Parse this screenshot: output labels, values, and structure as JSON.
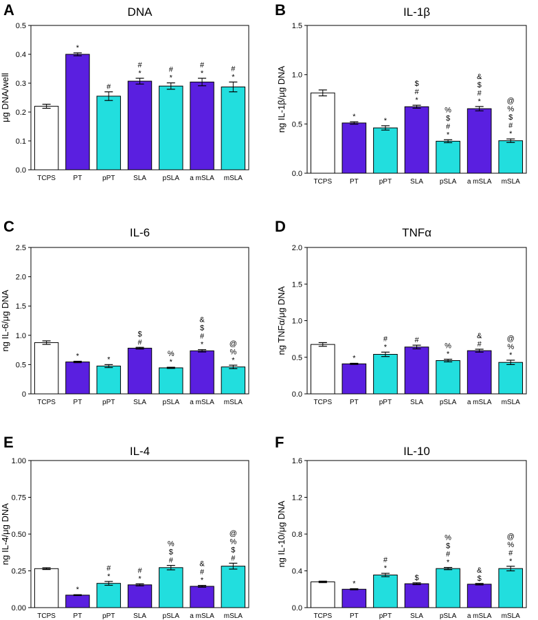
{
  "figure": {
    "colors": {
      "white": "#ffffff",
      "purple": "#5a1fe0",
      "cyan": "#22dede"
    },
    "bar_colors": [
      "white",
      "purple",
      "cyan",
      "purple",
      "cyan",
      "purple",
      "cyan"
    ]
  },
  "chart_data": [
    {
      "panel": "A",
      "title": "DNA",
      "type": "bar",
      "ylabel": "μg DNA/well",
      "categories": [
        "TCPS",
        "PT",
        "pPT",
        "SLA",
        "pSLA",
        "a mSLA",
        "mSLA"
      ],
      "values": [
        0.22,
        0.4,
        0.255,
        0.307,
        0.29,
        0.304,
        0.287
      ],
      "errors": [
        0.007,
        0.005,
        0.015,
        0.01,
        0.011,
        0.013,
        0.017
      ],
      "ylim": [
        0,
        0.5
      ],
      "yticks": [
        "0.0",
        "0.1",
        "0.2",
        "0.3",
        "0.4",
        "0.5"
      ],
      "annotations": [
        [],
        [
          "*"
        ],
        [
          "#"
        ],
        [
          "#",
          "*"
        ],
        [
          "#",
          "*"
        ],
        [
          "#",
          "*"
        ],
        [
          "#",
          "*"
        ]
      ]
    },
    {
      "panel": "B",
      "title": "IL-1β",
      "type": "bar",
      "ylabel": "ng IL-1β/μg DNA",
      "categories": [
        "TCPS",
        "PT",
        "pPT",
        "SLA",
        "pSLA",
        "a mSLA",
        "mSLA"
      ],
      "values": [
        0.815,
        0.51,
        0.46,
        0.675,
        0.325,
        0.655,
        0.33
      ],
      "errors": [
        0.03,
        0.012,
        0.022,
        0.015,
        0.015,
        0.022,
        0.018
      ],
      "ylim": [
        0,
        1.5
      ],
      "yticks": [
        "0.0",
        "0.5",
        "1.0",
        "1.5"
      ],
      "annotations": [
        [],
        [
          "*"
        ],
        [
          "*"
        ],
        [
          "$",
          "#",
          "*"
        ],
        [
          "%",
          "$",
          "#",
          "*"
        ],
        [
          "&",
          "$",
          "#",
          "*"
        ],
        [
          "@",
          "%",
          "$",
          "#",
          "*"
        ]
      ]
    },
    {
      "panel": "C",
      "title": "IL-6",
      "type": "bar",
      "ylabel": "ng IL-6/μg DNA",
      "categories": [
        "TCPS",
        "PT",
        "pPT",
        "SLA",
        "pSLA",
        "a mSLA",
        "mSLA"
      ],
      "values": [
        0.875,
        0.545,
        0.475,
        0.78,
        0.445,
        0.735,
        0.46
      ],
      "errors": [
        0.03,
        0.012,
        0.025,
        0.015,
        0.01,
        0.02,
        0.03
      ],
      "ylim": [
        0,
        2.5
      ],
      "yticks": [
        "0",
        "0.5",
        "1.0",
        "1.5",
        "2.0",
        "2.5"
      ],
      "annotations": [
        [],
        [
          "*"
        ],
        [
          "*"
        ],
        [
          "$",
          "#"
        ],
        [
          "%",
          "*"
        ],
        [
          "&",
          "$",
          "#",
          "*"
        ],
        [
          "@",
          "%",
          "*"
        ]
      ]
    },
    {
      "panel": "D",
      "title": "TNFα",
      "type": "bar",
      "ylabel": "ng TNFα/μg DNA",
      "categories": [
        "TCPS",
        "PT",
        "pPT",
        "SLA",
        "pSLA",
        "a mSLA",
        "mSLA"
      ],
      "values": [
        0.675,
        0.41,
        0.54,
        0.64,
        0.455,
        0.59,
        0.43
      ],
      "errors": [
        0.025,
        0.008,
        0.03,
        0.025,
        0.018,
        0.02,
        0.03
      ],
      "ylim": [
        0,
        2.0
      ],
      "yticks": [
        "0.0",
        "0.5",
        "1.0",
        "1.5",
        "2.0"
      ],
      "annotations": [
        [],
        [
          "*"
        ],
        [
          "#",
          "*"
        ],
        [
          "#"
        ],
        [
          "%",
          "*"
        ],
        [
          "&",
          "#"
        ],
        [
          "@",
          "%",
          "*"
        ]
      ]
    },
    {
      "panel": "E",
      "title": "IL-4",
      "type": "bar",
      "ylabel": "ng IL-4/μg DNA",
      "categories": [
        "TCPS",
        "PT",
        "pPT",
        "SLA",
        "pSLA",
        "a mSLA",
        "mSLA"
      ],
      "values": [
        0.265,
        0.085,
        0.165,
        0.155,
        0.272,
        0.145,
        0.282
      ],
      "errors": [
        0.006,
        0.003,
        0.013,
        0.007,
        0.015,
        0.006,
        0.02
      ],
      "ylim": [
        0,
        1.0
      ],
      "yticks": [
        "0.00",
        "0.25",
        "0.50",
        "0.75",
        "1.00"
      ],
      "annotations": [
        [],
        [
          "*"
        ],
        [
          "#",
          "*"
        ],
        [
          "#",
          "*"
        ],
        [
          "%",
          "$",
          "#"
        ],
        [
          "&",
          "#",
          "*"
        ],
        [
          "@",
          "%",
          "$",
          "#"
        ]
      ]
    },
    {
      "panel": "F",
      "title": "IL-10",
      "type": "bar",
      "ylabel": "ng IL-10/μg DNA",
      "categories": [
        "TCPS",
        "PT",
        "pPT",
        "SLA",
        "pSLA",
        "a mSLA",
        "mSLA"
      ],
      "values": [
        0.28,
        0.2,
        0.355,
        0.26,
        0.425,
        0.255,
        0.425
      ],
      "errors": [
        0.008,
        0.006,
        0.018,
        0.01,
        0.012,
        0.008,
        0.025
      ],
      "ylim": [
        0,
        1.6
      ],
      "yticks": [
        "0.0",
        "0.4",
        "0.8",
        "1.2",
        "1.6"
      ],
      "annotations": [
        [],
        [
          "*"
        ],
        [
          "#",
          "*"
        ],
        [
          "$"
        ],
        [
          "%",
          "$",
          "#",
          "*"
        ],
        [
          "&",
          "$"
        ],
        [
          "@",
          "%",
          "#",
          "*"
        ]
      ]
    }
  ]
}
